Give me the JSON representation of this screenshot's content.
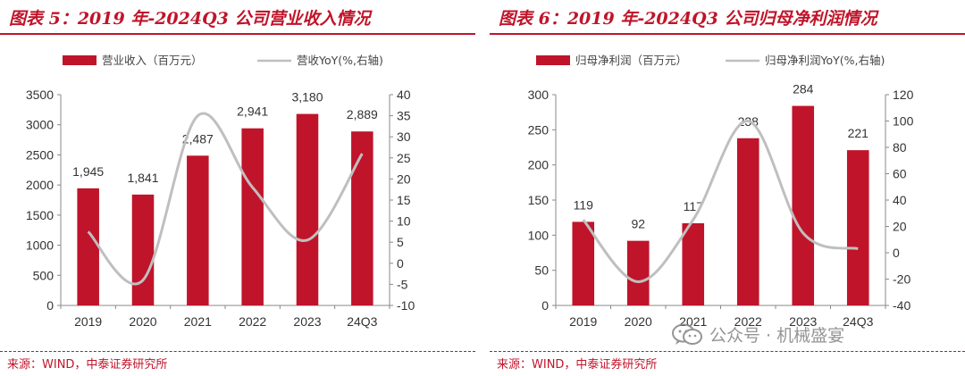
{
  "charts": [
    {
      "title": "图表 5：2019 年-2024Q3 公司营业收入情况",
      "source": "来源：WIND，中泰证券研究所"
    },
    {
      "title": "图表 6：2019 年-2024Q3 公司归母净利润情况",
      "source": "来源：WIND，中泰证券研究所"
    }
  ],
  "watermark": {
    "text": "公众号 · 机械盛宴",
    "icon": "wechat-icon"
  },
  "colors": {
    "bar": "#c0142a",
    "line": "#bfbfbf",
    "accent": "#c0142a"
  },
  "chart_data": [
    {
      "type": "bar",
      "categories": [
        "2019",
        "2020",
        "2021",
        "2022",
        "2023",
        "24Q3"
      ],
      "series": [
        {
          "name": "营业收入（百万元）",
          "type": "bar",
          "axis": "left",
          "values": [
            1945,
            1841,
            2487,
            2941,
            3180,
            2889
          ],
          "labels": [
            "1,945",
            "1,841",
            "2,487",
            "2,941",
            "3,180",
            "2,889"
          ]
        },
        {
          "name": "营收YoY(%,右轴)",
          "type": "line",
          "axis": "right",
          "values": [
            7.5,
            -4.0,
            35.0,
            18.0,
            5.5,
            26.0
          ]
        }
      ],
      "ylim": [
        0,
        3500
      ],
      "yticks": [
        "0",
        "500",
        "1000",
        "1500",
        "2000",
        "2500",
        "3000",
        "3500"
      ],
      "y2lim": [
        -10,
        40
      ],
      "y2ticks": [
        "-10",
        "-5",
        "0",
        "5",
        "10",
        "15",
        "20",
        "25",
        "30",
        "35",
        "40"
      ],
      "legend": "top",
      "grid": false
    },
    {
      "type": "bar",
      "categories": [
        "2019",
        "2020",
        "2021",
        "2022",
        "2023",
        "24Q3"
      ],
      "series": [
        {
          "name": "归母净利润（百万元）",
          "type": "bar",
          "axis": "left",
          "values": [
            119,
            92,
            117,
            238,
            284,
            221
          ],
          "labels": [
            "119",
            "92",
            "117",
            "238",
            "284",
            "221"
          ]
        },
        {
          "name": "归母净利润YoY(%,右轴)",
          "type": "line",
          "axis": "right",
          "values": [
            25,
            -22,
            25,
            100,
            15,
            3
          ]
        }
      ],
      "ylim": [
        0,
        300
      ],
      "yticks": [
        "0",
        "50",
        "100",
        "150",
        "200",
        "250",
        "300"
      ],
      "y2lim": [
        -40,
        120
      ],
      "y2ticks": [
        "-40",
        "-20",
        "0",
        "20",
        "40",
        "60",
        "80",
        "100",
        "120"
      ],
      "legend": "top",
      "grid": false
    }
  ]
}
